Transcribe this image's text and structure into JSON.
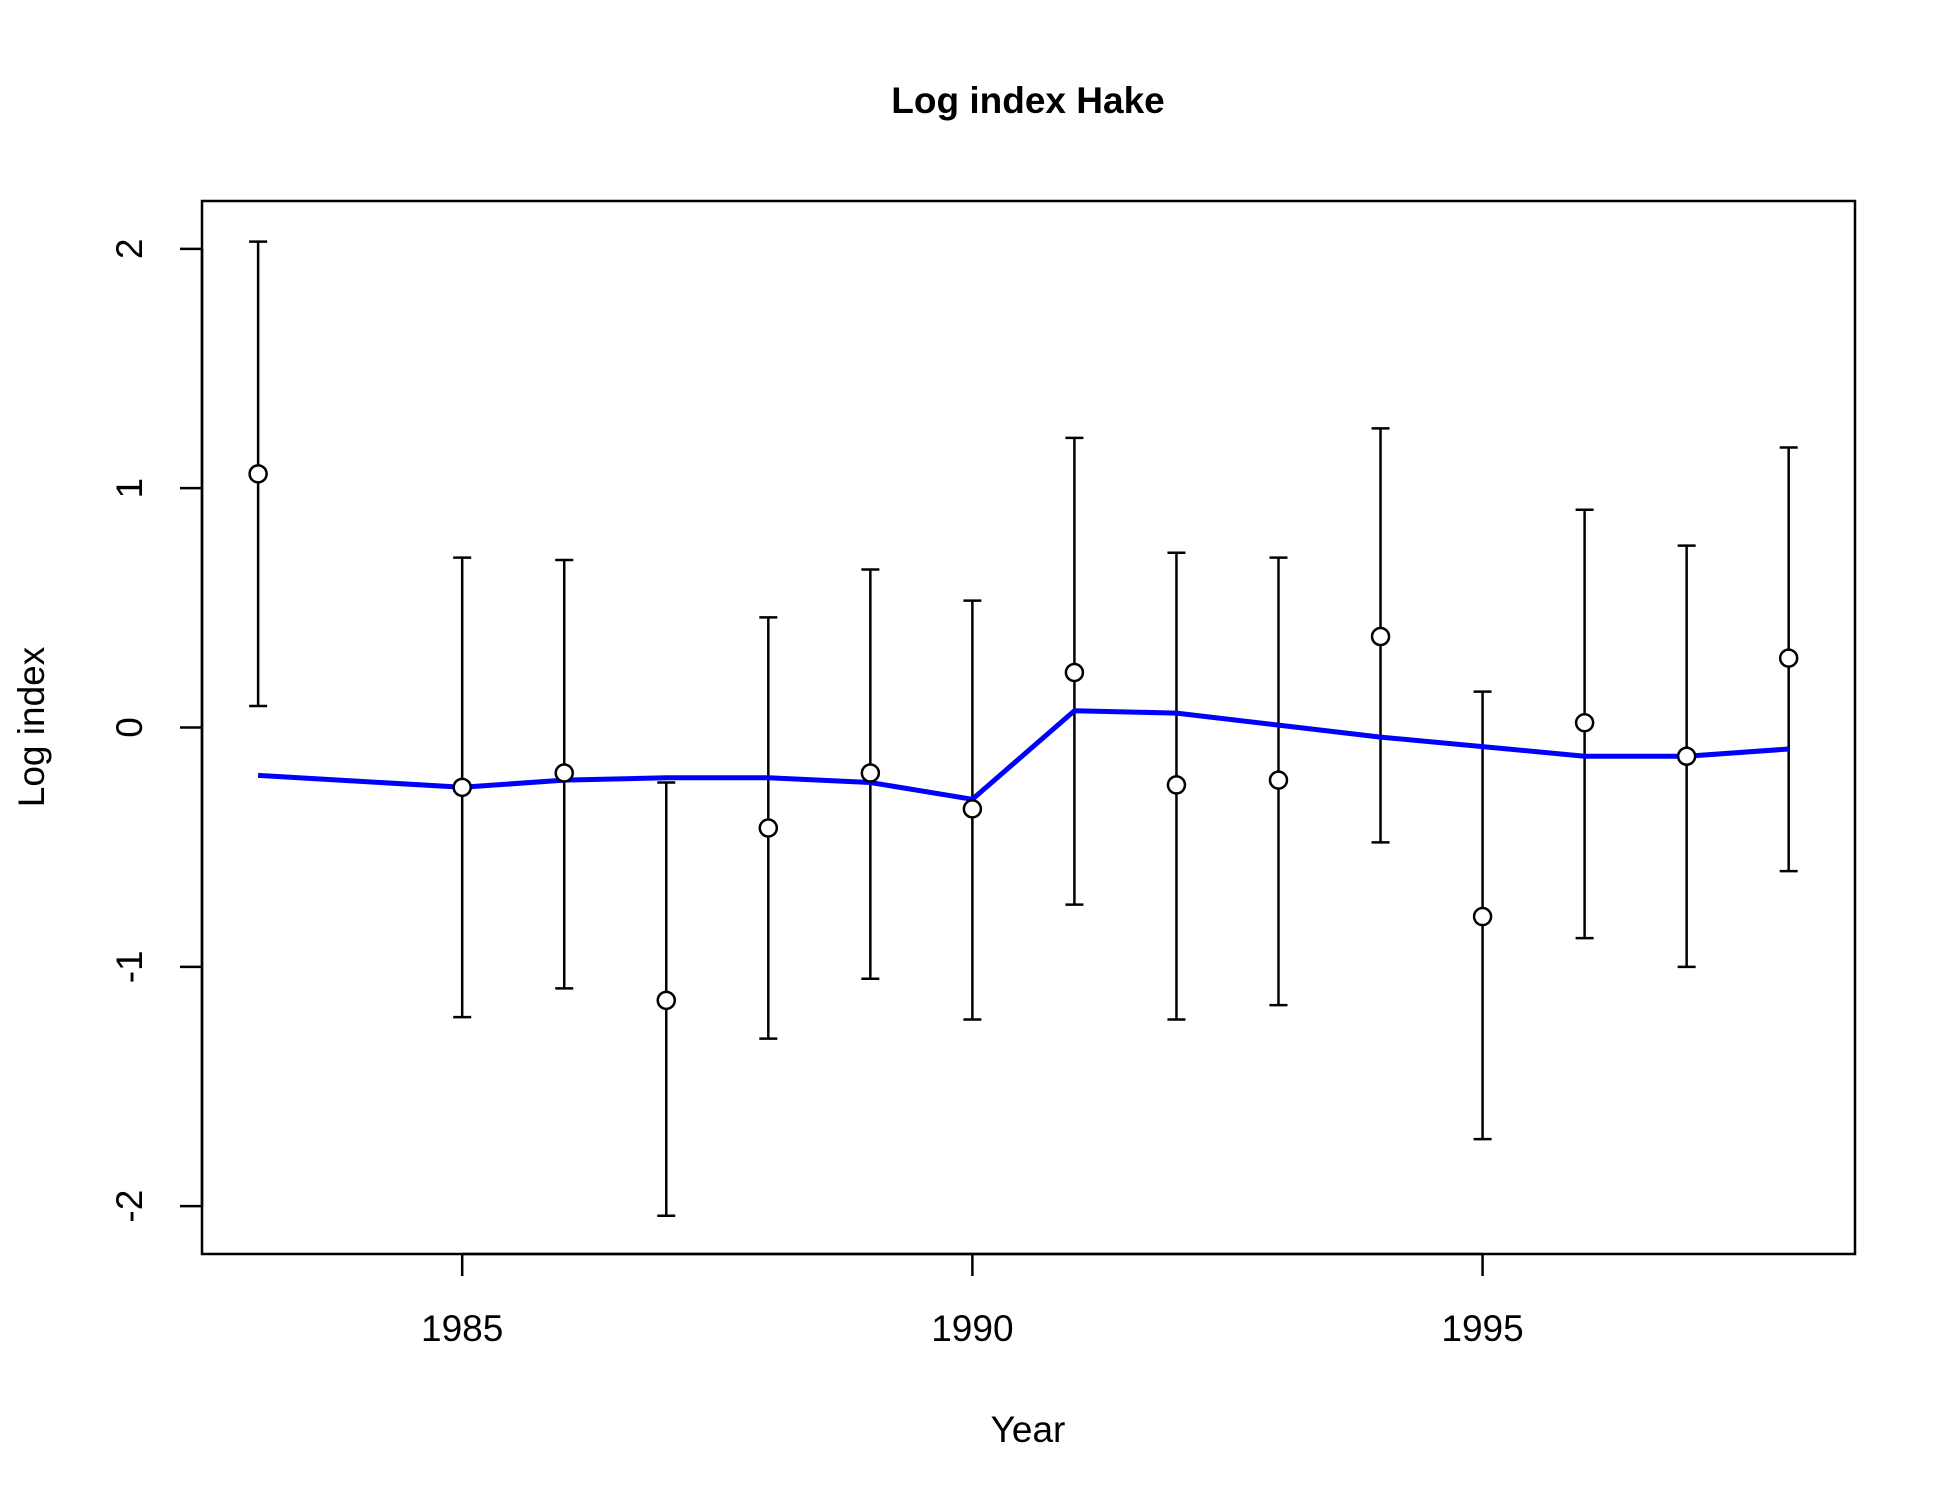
{
  "chart_data": {
    "type": "line",
    "title": "Log index Hake",
    "xlabel": "Year",
    "ylabel": "Log index",
    "xlim": [
      1982.45,
      1998.65
    ],
    "ylim": [
      -2.2,
      2.2
    ],
    "x_ticks": [
      1985,
      1990,
      1995
    ],
    "y_ticks": [
      -2,
      -1,
      0,
      1,
      2
    ],
    "grid": false,
    "series": [
      {
        "role": "observed",
        "marker": "open-circle",
        "x": [
          1983,
          1985,
          1986,
          1987,
          1988,
          1989,
          1990,
          1991,
          1992,
          1993,
          1994,
          1995,
          1996,
          1997,
          1998
        ],
        "y": [
          1.06,
          -0.25,
          -0.19,
          -1.14,
          -0.42,
          -0.19,
          -0.34,
          0.23,
          -0.24,
          -0.22,
          0.38,
          -0.79,
          0.02,
          -0.12,
          0.29
        ],
        "lower": [
          0.09,
          -1.21,
          -1.09,
          -2.04,
          -1.3,
          -1.05,
          -1.22,
          -0.74,
          -1.22,
          -1.16,
          -0.48,
          -1.72,
          -0.88,
          -1.0,
          -0.6
        ],
        "upper": [
          2.03,
          0.71,
          0.7,
          -0.23,
          0.46,
          0.66,
          0.53,
          1.21,
          0.73,
          0.71,
          1.25,
          0.15,
          0.91,
          0.76,
          1.17
        ]
      },
      {
        "role": "fitted",
        "color": "#0000ff",
        "x": [
          1983,
          1985,
          1986,
          1987,
          1988,
          1989,
          1990,
          1991,
          1992,
          1993,
          1994,
          1995,
          1996,
          1997,
          1998
        ],
        "y": [
          -0.2,
          -0.25,
          -0.22,
          -0.21,
          -0.21,
          -0.23,
          -0.3,
          0.07,
          0.06,
          0.01,
          -0.04,
          -0.08,
          -0.12,
          -0.12,
          -0.09
        ]
      }
    ]
  }
}
